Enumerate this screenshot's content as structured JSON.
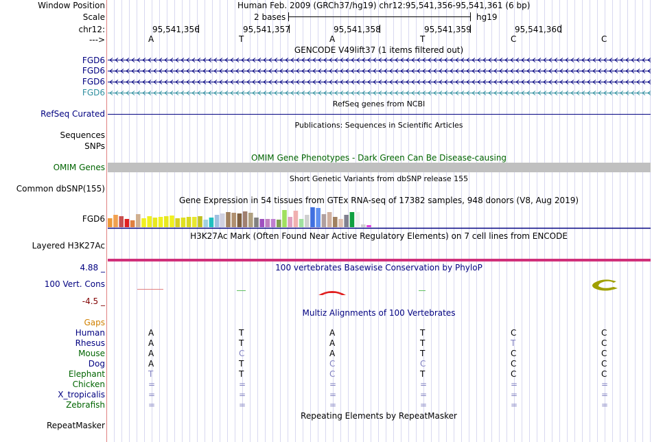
{
  "ruler": {
    "window_position_label": "Window Position",
    "window_position_value": "Human Feb. 2009 (GRCh37/hg19)   chr12:95,541,356-95,541,361 (6 bp)",
    "scale_label": "Scale",
    "scale_value": "2 bases",
    "scale_assembly": "hg19",
    "chrom_label": "chr12:",
    "positions": [
      "95,541,356",
      "95,541,357",
      "95,541,358",
      "95,541,359",
      "95,541,360"
    ],
    "strand_label": "--->",
    "bases": [
      "A",
      "T",
      "A",
      "T",
      "C",
      "C"
    ]
  },
  "tracks": {
    "gencode": {
      "title": "GENCODE V49lift37 (1 items filtered out)",
      "genes": [
        "FGD6",
        "FGD6",
        "FGD6",
        "FGD6"
      ]
    },
    "refseq": {
      "title": "RefSeq genes from NCBI",
      "label": "RefSeq Curated"
    },
    "publications": {
      "title": "Publications: Sequences in Scientific Articles",
      "labels": [
        "Sequences",
        "SNPs"
      ]
    },
    "omim": {
      "title": "OMIM Gene Phenotypes - Dark Green Can Be Disease-causing",
      "label": "OMIM Genes"
    },
    "dbsnp": {
      "title": "Short Genetic Variants from dbSNP release 155",
      "label": "Common dbSNP(155)"
    },
    "gtex": {
      "title": "Gene Expression in 54 tissues from GTEx RNA-seq of 17382 samples, 948 donors (V8, Aug 2019)",
      "label": "FGD6"
    },
    "h3k27ac": {
      "title": "H3K27Ac Mark (Often Found Near Active Regulatory Elements) on 7 cell lines from ENCODE",
      "label": "Layered H3K27Ac"
    },
    "phylop": {
      "title": "100 vertebrates Basewise Conservation by PhyloP",
      "label": "100 Vert. Cons",
      "max": "4.88 _",
      "min": "-4.5 _"
    },
    "multiz": {
      "title": "Multiz Alignments of 100 Vertebrates",
      "gaps_label": "Gaps",
      "species": [
        {
          "name": "Human",
          "bases": [
            "A",
            "T",
            "A",
            "T",
            "C",
            "C"
          ]
        },
        {
          "name": "Rhesus",
          "bases": [
            "A",
            "T",
            "A",
            "T",
            "T",
            "C"
          ]
        },
        {
          "name": "Mouse",
          "bases": [
            "A",
            "C",
            "A",
            "T",
            "C",
            "C"
          ]
        },
        {
          "name": "Dog",
          "bases": [
            "A",
            "T",
            "C",
            "C",
            "C",
            "C"
          ]
        },
        {
          "name": "Elephant",
          "bases": [
            "T",
            "T",
            "C",
            "T",
            "C",
            "C"
          ]
        },
        {
          "name": "Chicken",
          "bases": [
            "=",
            "=",
            "=",
            "=",
            "=",
            "="
          ]
        },
        {
          "name": "X_tropicalis",
          "bases": [
            "=",
            "=",
            "=",
            "=",
            "=",
            "="
          ]
        },
        {
          "name": "Zebrafish",
          "bases": [
            "=",
            "=",
            "=",
            "=",
            "=",
            "="
          ]
        }
      ]
    },
    "repeatmasker": {
      "title": "Repeating Elements by RepeatMasker",
      "label": "RepeatMasker"
    }
  },
  "colors": {
    "navy": "#000080",
    "omim_green": "#006400",
    "gaps_orange": "#d08000",
    "gencode_light": "#2f8f9f",
    "omim_bar": "#c0c0c0",
    "h3k27ac_band": "#d0307a",
    "phylop_min": "#800000",
    "mismatch": "#8080c0"
  }
}
